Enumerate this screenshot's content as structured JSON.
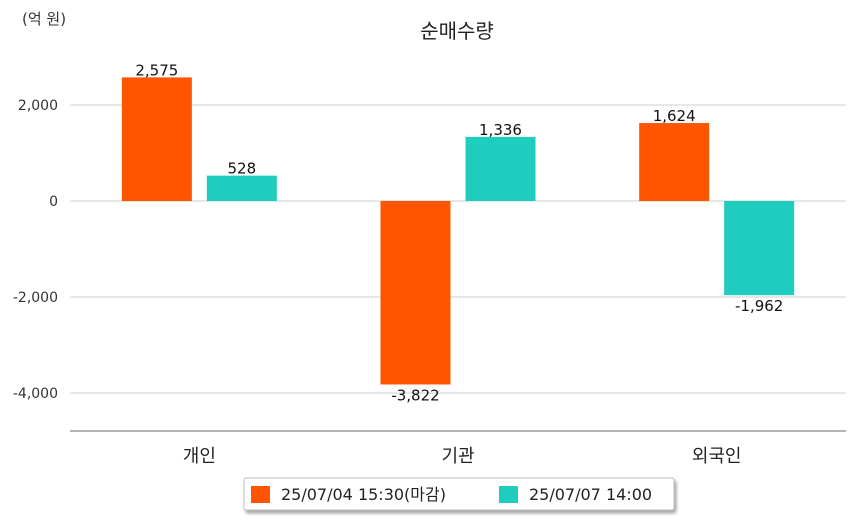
{
  "chart_data": {
    "type": "bar",
    "title": "순매수량",
    "unit_label": "(억 원)",
    "categories": [
      "개인",
      "기관",
      "외국인"
    ],
    "series": [
      {
        "name": "25/07/04 15:30(마감)",
        "color": "#FF5400",
        "values": [
          2575,
          -3822,
          1624
        ],
        "labels": [
          "2,575",
          "-3,822",
          "1,624"
        ]
      },
      {
        "name": "25/07/07 14:00",
        "color": "#1ECDBE",
        "values": [
          528,
          1336,
          -1962
        ],
        "labels": [
          "528",
          "1,336",
          "-1,962"
        ]
      }
    ],
    "yticks": [
      2000,
      0,
      -2000,
      -4000
    ],
    "ytick_labels": [
      "2,000",
      "0",
      "-2,000",
      "-4,000"
    ],
    "ylim": [
      -4800,
      3100
    ],
    "grid": true,
    "legend_position": "bottom"
  }
}
